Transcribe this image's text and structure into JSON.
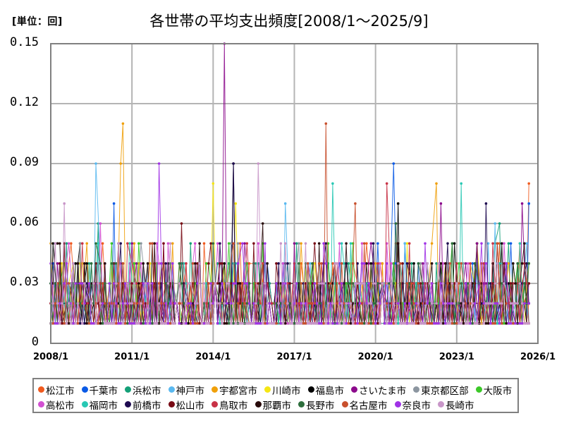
{
  "header": {
    "unit_label": "[単位：回]",
    "title": "各世帯の平均支出頻度[2008/1～2025/9]"
  },
  "chart_data": {
    "type": "line",
    "title": "各世帯の平均支出頻度[2008/1～2025/9]",
    "unit": "回",
    "xlabel": "",
    "ylabel": "",
    "x_range": [
      "2008/1",
      "2025/9"
    ],
    "x_axis_range": [
      "2008/1",
      "2026/1"
    ],
    "ylim": [
      0,
      0.15
    ],
    "yticks": [
      "0",
      "0.03",
      "0.06",
      "0.09",
      "0.12",
      "0.15"
    ],
    "xticks": [
      "2008/1",
      "2011/1",
      "2014/1",
      "2017/1",
      "2020/1",
      "2023/1",
      "2026/1"
    ],
    "grid": true,
    "legend_position": "bottom",
    "markers": true,
    "note": "Monthly series; most values fall between 0.01 and 0.03 with sporadic peaks. Peaks listed are read from the chart.",
    "series": [
      {
        "name": "松江市",
        "color": "#f05a1e",
        "peaks": [
          [
            "2008/10",
            0.05
          ],
          [
            "2025/9",
            0.08
          ]
        ]
      },
      {
        "name": "千葉市",
        "color": "#0a5ae6",
        "peaks": [
          [
            "2010/5",
            0.07
          ],
          [
            "2020/9",
            0.09
          ],
          [
            "2025/9",
            0.07
          ]
        ]
      },
      {
        "name": "浜松市",
        "color": "#14a078",
        "peaks": [
          [
            "2009/10",
            0.06
          ],
          [
            "2024/8",
            0.06
          ]
        ]
      },
      {
        "name": "神戸市",
        "color": "#5ab9f0",
        "peaks": [
          [
            "2009/9",
            0.09
          ],
          [
            "2016/9",
            0.07
          ],
          [
            "2024/6",
            0.06
          ]
        ]
      },
      {
        "name": "宇都宮市",
        "color": "#f0a00a",
        "peaks": [
          [
            "2010/9",
            0.11
          ],
          [
            "2010/8",
            0.09
          ],
          [
            "2022/4",
            0.08
          ]
        ]
      },
      {
        "name": "川崎市",
        "color": "#f5e614",
        "peaks": [
          [
            "2014/1",
            0.08
          ],
          [
            "2014/11",
            0.07
          ]
        ]
      },
      {
        "name": "福島市",
        "color": "#000000",
        "peaks": [
          [
            "2014/10",
            0.09
          ],
          [
            "2020/11",
            0.07
          ]
        ]
      },
      {
        "name": "さいたま市",
        "color": "#8c0a8c",
        "peaks": [
          [
            "2014/6",
            0.15
          ],
          [
            "2022/6",
            0.07
          ],
          [
            "2025/6",
            0.07
          ]
        ]
      },
      {
        "name": "東京都区部",
        "color": "#8c96a0",
        "peaks": [
          [
            "2009/2",
            0.05
          ]
        ]
      },
      {
        "name": "大阪市",
        "color": "#3cc828",
        "peaks": [
          [
            "2010/4",
            0.05
          ]
        ]
      },
      {
        "name": "高松市",
        "color": "#d250d2",
        "peaks": [
          [
            "2009/11",
            0.06
          ]
        ]
      },
      {
        "name": "福岡市",
        "color": "#28c8b4",
        "peaks": [
          [
            "2018/6",
            0.08
          ],
          [
            "2023/3",
            0.08
          ]
        ]
      },
      {
        "name": "前橋市",
        "color": "#1e0a50",
        "peaks": [
          [
            "2014/10",
            0.09
          ],
          [
            "2024/2",
            0.07
          ]
        ]
      },
      {
        "name": "松山市",
        "color": "#780a14",
        "peaks": [
          [
            "2012/11",
            0.06
          ]
        ]
      },
      {
        "name": "鳥取市",
        "color": "#c83246",
        "peaks": [
          [
            "2020/6",
            0.08
          ]
        ]
      },
      {
        "name": "那覇市",
        "color": "#280a0a",
        "peaks": [
          [
            "2015/11",
            0.06
          ],
          [
            "2025/7",
            0.05
          ]
        ]
      },
      {
        "name": "長野市",
        "color": "#2d6e3c",
        "peaks": [
          [
            "2020/10",
            0.06
          ]
        ]
      },
      {
        "name": "名古屋市",
        "color": "#c8502d",
        "peaks": [
          [
            "2018/3",
            0.11
          ],
          [
            "2019/4",
            0.07
          ]
        ]
      },
      {
        "name": "奈良市",
        "color": "#a032e6",
        "peaks": [
          [
            "2012/1",
            0.09
          ]
        ]
      },
      {
        "name": "長崎市",
        "color": "#c896c8",
        "peaks": [
          [
            "2008/7",
            0.07
          ],
          [
            "2015/9",
            0.09
          ]
        ]
      }
    ]
  },
  "legend": {
    "rows": [
      [
        "松江市",
        "千葉市",
        "浜松市",
        "神戸市",
        "宇都宮市",
        "川崎市",
        "福島市",
        "さいたま市",
        "東京都区部",
        "大阪市"
      ],
      [
        "高松市",
        "福岡市",
        "前橋市",
        "松山市",
        "鳥取市",
        "那覇市",
        "長野市",
        "名古屋市",
        "奈良市",
        "長崎市"
      ]
    ]
  }
}
